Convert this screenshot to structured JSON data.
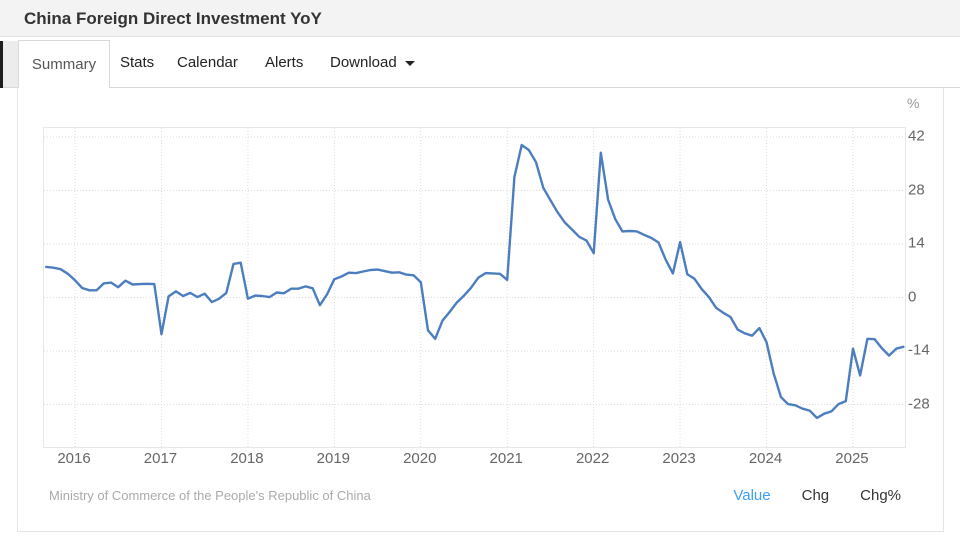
{
  "header": {
    "title": "China Foreign Direct Investment YoY"
  },
  "tabs": {
    "items": [
      {
        "label": "Summary",
        "active": true
      },
      {
        "label": "Stats",
        "active": false
      },
      {
        "label": "Calendar",
        "active": false
      },
      {
        "label": "Alerts",
        "active": false
      },
      {
        "label": "Download",
        "active": false,
        "has_dropdown": true
      }
    ]
  },
  "footer": {
    "source": "Ministry of Commerce of the People's Republic of China",
    "links": [
      {
        "label": "Value",
        "active": true
      },
      {
        "label": "Chg",
        "active": false
      },
      {
        "label": "Chg%",
        "active": false
      }
    ]
  },
  "colors": {
    "line": "#4c7ebf",
    "grid": "#dcdcdc",
    "active_link": "#3b9ff5",
    "tick_text": "#666666"
  },
  "chart_data": {
    "type": "line",
    "title": "China Foreign Direct Investment YoY",
    "unit": "%",
    "ylabel": "%",
    "legend": "none",
    "grid": "dotted",
    "y_ticks": [
      42,
      28,
      14,
      0,
      -14,
      -28
    ],
    "x_ticks": [
      2016,
      2017,
      2018,
      2019,
      2020,
      2021,
      2022,
      2023,
      2024,
      2025
    ],
    "x_axis": {
      "min": 2015.641,
      "max": 2025.602
    },
    "y_axis": {
      "min": -39.12,
      "max": 44.36
    },
    "series": [
      {
        "name": "Value",
        "points": [
          [
            2015.667,
            8.0
          ],
          [
            2015.75,
            7.8
          ],
          [
            2015.833,
            7.4
          ],
          [
            2015.917,
            6.2
          ],
          [
            2016.0,
            4.5
          ],
          [
            2016.083,
            2.5
          ],
          [
            2016.167,
            1.9
          ],
          [
            2016.25,
            1.9
          ],
          [
            2016.333,
            3.7
          ],
          [
            2016.417,
            3.9
          ],
          [
            2016.5,
            2.7
          ],
          [
            2016.583,
            4.4
          ],
          [
            2016.667,
            3.4
          ],
          [
            2016.75,
            3.5
          ],
          [
            2016.833,
            3.6
          ],
          [
            2016.917,
            3.5
          ],
          [
            2017.0,
            -9.6
          ],
          [
            2017.083,
            0.3
          ],
          [
            2017.167,
            1.6
          ],
          [
            2017.25,
            0.4
          ],
          [
            2017.333,
            1.2
          ],
          [
            2017.417,
            0.1
          ],
          [
            2017.5,
            1.0
          ],
          [
            2017.583,
            -1.2
          ],
          [
            2017.667,
            -0.3
          ],
          [
            2017.75,
            1.2
          ],
          [
            2017.833,
            8.8
          ],
          [
            2017.917,
            9.1
          ],
          [
            2018.0,
            -0.3
          ],
          [
            2018.083,
            0.5
          ],
          [
            2018.167,
            0.4
          ],
          [
            2018.25,
            0.1
          ],
          [
            2018.333,
            1.3
          ],
          [
            2018.417,
            1.1
          ],
          [
            2018.5,
            2.3
          ],
          [
            2018.583,
            2.3
          ],
          [
            2018.667,
            2.9
          ],
          [
            2018.75,
            2.4
          ],
          [
            2018.833,
            -2.0
          ],
          [
            2018.917,
            0.9
          ],
          [
            2019.0,
            4.8
          ],
          [
            2019.083,
            5.5
          ],
          [
            2019.167,
            6.5
          ],
          [
            2019.25,
            6.4
          ],
          [
            2019.333,
            6.8
          ],
          [
            2019.417,
            7.2
          ],
          [
            2019.5,
            7.3
          ],
          [
            2019.583,
            6.9
          ],
          [
            2019.667,
            6.5
          ],
          [
            2019.75,
            6.6
          ],
          [
            2019.833,
            6.0
          ],
          [
            2019.917,
            5.8
          ],
          [
            2020.0,
            4.0
          ],
          [
            2020.083,
            -8.6
          ],
          [
            2020.167,
            -10.8
          ],
          [
            2020.25,
            -6.1
          ],
          [
            2020.333,
            -3.8
          ],
          [
            2020.417,
            -1.3
          ],
          [
            2020.5,
            0.5
          ],
          [
            2020.583,
            2.6
          ],
          [
            2020.667,
            5.2
          ],
          [
            2020.75,
            6.4
          ],
          [
            2020.833,
            6.3
          ],
          [
            2020.917,
            6.2
          ],
          [
            2021.0,
            4.6
          ],
          [
            2021.083,
            31.5
          ],
          [
            2021.167,
            39.9
          ],
          [
            2021.25,
            38.6
          ],
          [
            2021.333,
            35.4
          ],
          [
            2021.417,
            28.7
          ],
          [
            2021.5,
            25.5
          ],
          [
            2021.583,
            22.3
          ],
          [
            2021.667,
            19.6
          ],
          [
            2021.75,
            17.8
          ],
          [
            2021.833,
            15.9
          ],
          [
            2021.917,
            14.9
          ],
          [
            2022.0,
            11.6
          ],
          [
            2022.083,
            37.9
          ],
          [
            2022.167,
            25.6
          ],
          [
            2022.25,
            20.5
          ],
          [
            2022.333,
            17.3
          ],
          [
            2022.417,
            17.4
          ],
          [
            2022.5,
            17.3
          ],
          [
            2022.583,
            16.4
          ],
          [
            2022.667,
            15.6
          ],
          [
            2022.75,
            14.4
          ],
          [
            2022.833,
            9.9
          ],
          [
            2022.917,
            6.3
          ],
          [
            2023.0,
            14.5
          ],
          [
            2023.083,
            6.1
          ],
          [
            2023.167,
            4.9
          ],
          [
            2023.25,
            2.2
          ],
          [
            2023.333,
            0.1
          ],
          [
            2023.417,
            -2.7
          ],
          [
            2023.5,
            -4.0
          ],
          [
            2023.583,
            -5.1
          ],
          [
            2023.667,
            -8.4
          ],
          [
            2023.75,
            -9.4
          ],
          [
            2023.833,
            -10.0
          ],
          [
            2023.917,
            -8.0
          ],
          [
            2024.0,
            -11.7
          ],
          [
            2024.083,
            -19.9
          ],
          [
            2024.167,
            -26.1
          ],
          [
            2024.25,
            -27.9
          ],
          [
            2024.333,
            -28.2
          ],
          [
            2024.417,
            -29.1
          ],
          [
            2024.5,
            -29.6
          ],
          [
            2024.583,
            -31.5
          ],
          [
            2024.667,
            -30.4
          ],
          [
            2024.75,
            -29.8
          ],
          [
            2024.833,
            -27.9
          ],
          [
            2024.917,
            -27.1
          ],
          [
            2025.0,
            -13.4
          ],
          [
            2025.083,
            -20.4
          ],
          [
            2025.167,
            -10.8
          ],
          [
            2025.25,
            -10.9
          ],
          [
            2025.333,
            -13.2
          ],
          [
            2025.417,
            -15.2
          ],
          [
            2025.5,
            -13.4
          ],
          [
            2025.583,
            -12.9
          ]
        ]
      }
    ]
  }
}
